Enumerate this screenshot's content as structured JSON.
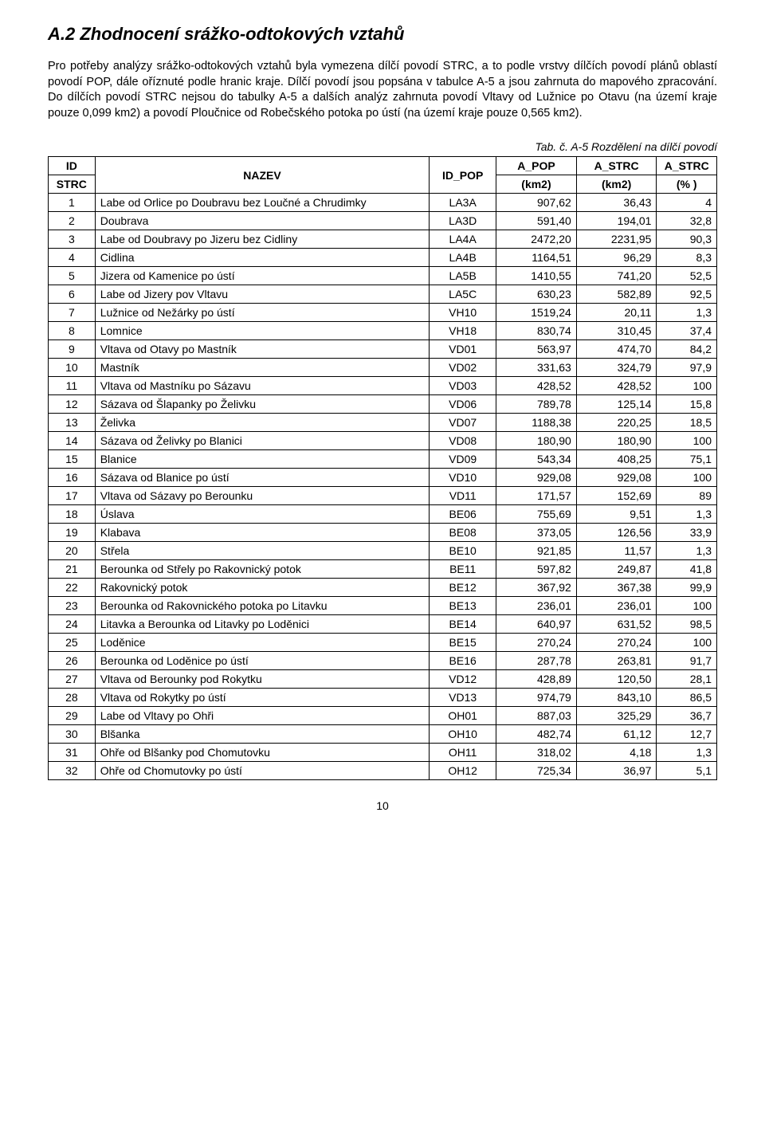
{
  "heading": "A.2 Zhodnocení srážko-odtokových vztahů",
  "paragraph": "Pro potřeby analýzy srážko-odtokových vztahů byla vymezena dílčí povodí STRC, a to podle vrstvy dílčích povodí plánů oblastí povodí POP, dále oříznuté podle hranic kraje. Dílčí povodí jsou popsána v tabulce A-5 a jsou zahrnuta do mapového zpracování. Do dílčích povodí STRC nejsou do tabulky A-5 a dalších analýz zahrnuta povodí Vltavy od Lužnice po Otavu (na území kraje pouze 0,099 km2) a povodí Ploučnice od Robečského potoka po ústí (na území kraje pouze 0,565 km2).",
  "caption": "Tab. č. A-5  Rozdělení na dílčí povodí",
  "table": {
    "header": {
      "id_top": "ID",
      "id_bot": "STRC",
      "nazev": "NAZEV",
      "id_pop": "ID_POP",
      "a_pop_top": "A_POP",
      "a_pop_bot": "(km2)",
      "a_strc_top": "A_STRC",
      "a_strc_bot": "(km2)",
      "a_pct_top": "A_STRC",
      "a_pct_bot": "(% )"
    },
    "rows": [
      {
        "id": "1",
        "name": "Labe od Orlice po Doubravu bez Loučné a Chrudimky",
        "pop": "LA3A",
        "apop": "907,62",
        "strc": "36,43",
        "pct": "4"
      },
      {
        "id": "2",
        "name": "Doubrava",
        "pop": "LA3D",
        "apop": "591,40",
        "strc": "194,01",
        "pct": "32,8"
      },
      {
        "id": "3",
        "name": "Labe od Doubravy po Jizeru bez Cidliny",
        "pop": "LA4A",
        "apop": "2472,20",
        "strc": "2231,95",
        "pct": "90,3"
      },
      {
        "id": "4",
        "name": "Cidlina",
        "pop": "LA4B",
        "apop": "1164,51",
        "strc": "96,29",
        "pct": "8,3"
      },
      {
        "id": "5",
        "name": "Jizera od Kamenice po ústí",
        "pop": "LA5B",
        "apop": "1410,55",
        "strc": "741,20",
        "pct": "52,5"
      },
      {
        "id": "6",
        "name": "Labe od Jizery pov Vltavu",
        "pop": "LA5C",
        "apop": "630,23",
        "strc": "582,89",
        "pct": "92,5"
      },
      {
        "id": "7",
        "name": "Lužnice od Nežárky po ústí",
        "pop": "VH10",
        "apop": "1519,24",
        "strc": "20,11",
        "pct": "1,3"
      },
      {
        "id": "8",
        "name": "Lomnice",
        "pop": "VH18",
        "apop": "830,74",
        "strc": "310,45",
        "pct": "37,4"
      },
      {
        "id": "9",
        "name": "Vltava od Otavy po Mastník",
        "pop": "VD01",
        "apop": "563,97",
        "strc": "474,70",
        "pct": "84,2"
      },
      {
        "id": "10",
        "name": "Mastník",
        "pop": "VD02",
        "apop": "331,63",
        "strc": "324,79",
        "pct": "97,9"
      },
      {
        "id": "11",
        "name": "Vltava od Mastníku po Sázavu",
        "pop": "VD03",
        "apop": "428,52",
        "strc": "428,52",
        "pct": "100"
      },
      {
        "id": "12",
        "name": "Sázava od Šlapanky po Želivku",
        "pop": "VD06",
        "apop": "789,78",
        "strc": "125,14",
        "pct": "15,8"
      },
      {
        "id": "13",
        "name": "Želivka",
        "pop": "VD07",
        "apop": "1188,38",
        "strc": "220,25",
        "pct": "18,5"
      },
      {
        "id": "14",
        "name": "Sázava od Želivky po Blanici",
        "pop": "VD08",
        "apop": "180,90",
        "strc": "180,90",
        "pct": "100"
      },
      {
        "id": "15",
        "name": "Blanice",
        "pop": "VD09",
        "apop": "543,34",
        "strc": "408,25",
        "pct": "75,1"
      },
      {
        "id": "16",
        "name": "Sázava od Blanice po ústí",
        "pop": "VD10",
        "apop": "929,08",
        "strc": "929,08",
        "pct": "100"
      },
      {
        "id": "17",
        "name": "Vltava od Sázavy po Berounku",
        "pop": "VD11",
        "apop": "171,57",
        "strc": "152,69",
        "pct": "89"
      },
      {
        "id": "18",
        "name": "Úslava",
        "pop": "BE06",
        "apop": "755,69",
        "strc": "9,51",
        "pct": "1,3"
      },
      {
        "id": "19",
        "name": "Klabava",
        "pop": "BE08",
        "apop": "373,05",
        "strc": "126,56",
        "pct": "33,9"
      },
      {
        "id": "20",
        "name": "Střela",
        "pop": "BE10",
        "apop": "921,85",
        "strc": "11,57",
        "pct": "1,3"
      },
      {
        "id": "21",
        "name": "Berounka od Střely po Rakovnický potok",
        "pop": "BE11",
        "apop": "597,82",
        "strc": "249,87",
        "pct": "41,8"
      },
      {
        "id": "22",
        "name": "Rakovnický potok",
        "pop": "BE12",
        "apop": "367,92",
        "strc": "367,38",
        "pct": "99,9"
      },
      {
        "id": "23",
        "name": "Berounka od Rakovnického potoka po Litavku",
        "pop": "BE13",
        "apop": "236,01",
        "strc": "236,01",
        "pct": "100"
      },
      {
        "id": "24",
        "name": "Litavka a Berounka od Litavky po Loděnici",
        "pop": "BE14",
        "apop": "640,97",
        "strc": "631,52",
        "pct": "98,5"
      },
      {
        "id": "25",
        "name": "Loděnice",
        "pop": "BE15",
        "apop": "270,24",
        "strc": "270,24",
        "pct": "100"
      },
      {
        "id": "26",
        "name": "Berounka od Loděnice po ústí",
        "pop": "BE16",
        "apop": "287,78",
        "strc": "263,81",
        "pct": "91,7"
      },
      {
        "id": "27",
        "name": "Vltava od Berounky pod Rokytku",
        "pop": "VD12",
        "apop": "428,89",
        "strc": "120,50",
        "pct": "28,1"
      },
      {
        "id": "28",
        "name": "Vltava od Rokytky po ústí",
        "pop": "VD13",
        "apop": "974,79",
        "strc": "843,10",
        "pct": "86,5"
      },
      {
        "id": "29",
        "name": "Labe od Vltavy po Ohři",
        "pop": "OH01",
        "apop": "887,03",
        "strc": "325,29",
        "pct": "36,7"
      },
      {
        "id": "30",
        "name": "Blšanka",
        "pop": "OH10",
        "apop": "482,74",
        "strc": "61,12",
        "pct": "12,7"
      },
      {
        "id": "31",
        "name": "Ohře od Blšanky pod Chomutovku",
        "pop": "OH11",
        "apop": "318,02",
        "strc": "4,18",
        "pct": "1,3"
      },
      {
        "id": "32",
        "name": "Ohře od Chomutovky po ústí",
        "pop": "OH12",
        "apop": "725,34",
        "strc": "36,97",
        "pct": "5,1"
      }
    ]
  },
  "page_number": "10"
}
